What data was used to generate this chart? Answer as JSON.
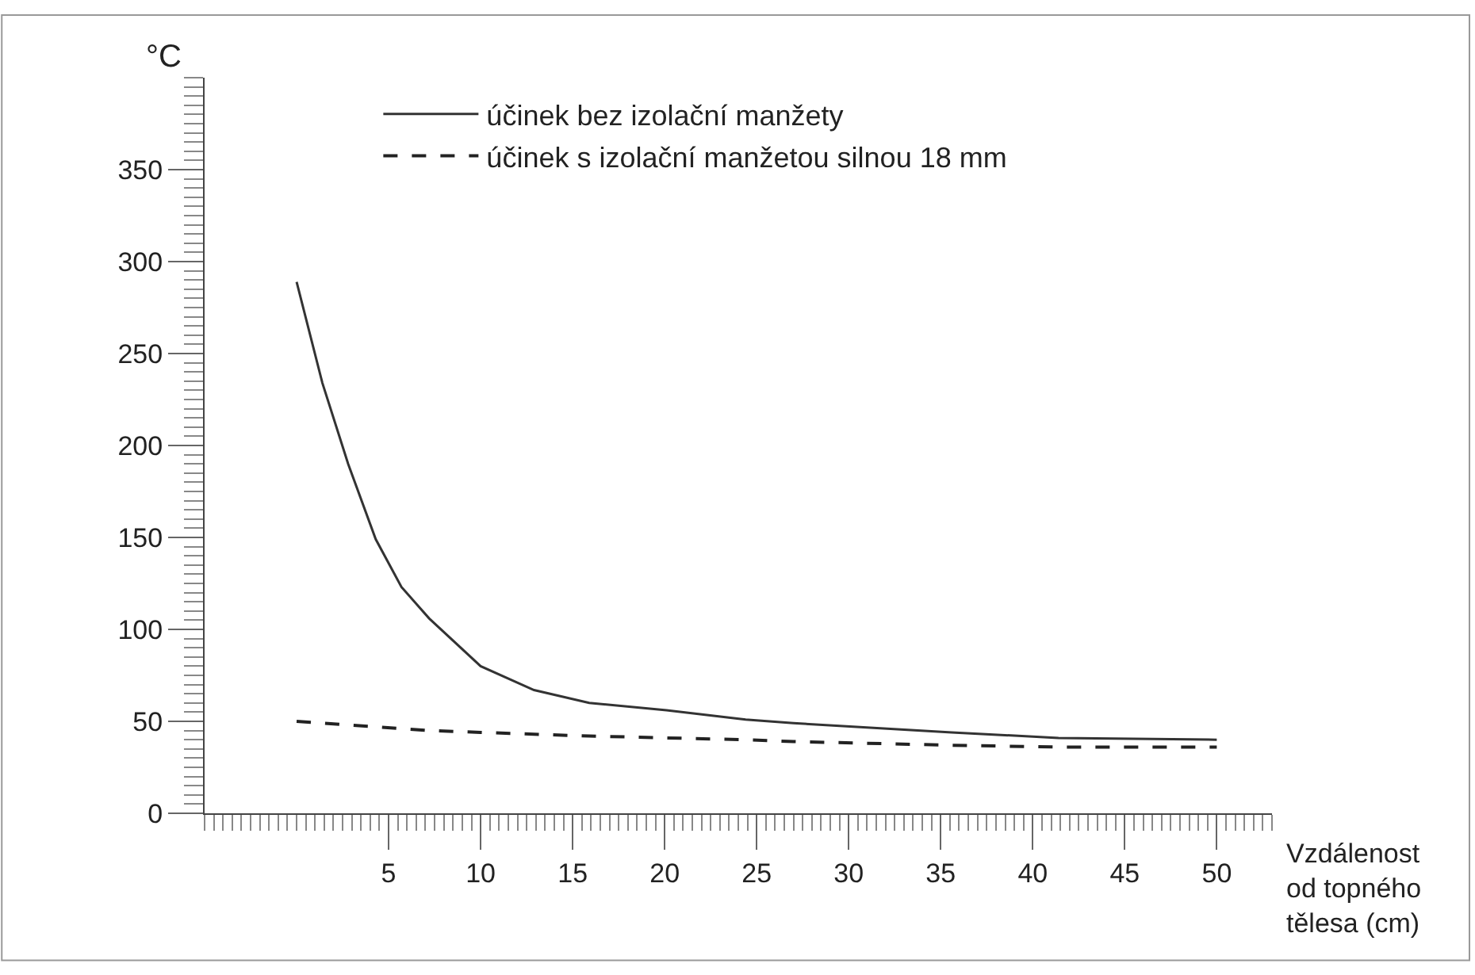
{
  "chart_data": {
    "type": "line",
    "xlabel": "Vzdálenost od topného tělesa (cm)",
    "ylabel": "°C",
    "x": [
      0,
      1.4,
      2.8,
      4.3,
      5.7,
      7.2,
      10,
      12.9,
      15.9,
      20.1,
      24.4,
      27,
      35.6,
      41.4,
      50
    ],
    "series": [
      {
        "name": "účinek bez izolační manžety",
        "color": "#333333",
        "line_style": "solid",
        "values": [
          289,
          234,
          190,
          149,
          123,
          106,
          80,
          67,
          60,
          56,
          51,
          49,
          44,
          41,
          40
        ]
      },
      {
        "name": "účinek s izolační manžetou silnou 18 mm",
        "color": "#222222",
        "line_style": "dashed",
        "values": [
          50,
          49,
          48,
          47,
          46,
          45,
          44,
          43,
          42,
          41,
          40,
          39,
          37,
          36,
          36
        ]
      }
    ],
    "xlim": [
      -5,
      53
    ],
    "ylim": [
      0,
      400
    ],
    "xticks": [
      5,
      10,
      15,
      20,
      25,
      30,
      35,
      40,
      45,
      50
    ],
    "yticks": [
      0,
      50,
      100,
      150,
      200,
      250,
      300,
      350
    ],
    "grid": false,
    "legend": "top",
    "marker": "none"
  }
}
